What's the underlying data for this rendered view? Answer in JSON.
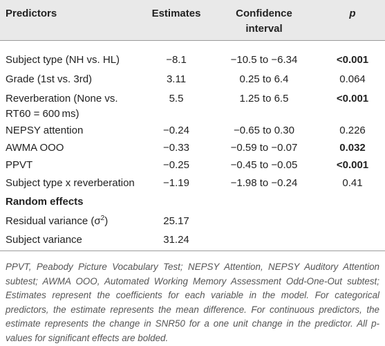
{
  "table": {
    "header": [
      "Predictors",
      "Estimates",
      [
        "Confidence",
        "interval"
      ],
      "p"
    ],
    "rows": [
      {
        "cells": [
          "Subject type (NH vs. HL)",
          "−8.1",
          "−10.5 to −6.34",
          "<0.001"
        ],
        "significant": true
      },
      {
        "cells": [
          "Grade (1st vs. 3rd)",
          "3.11",
          "0.25 to 6.4",
          "0.064"
        ],
        "significant": false
      },
      {
        "cells": [
          [
            "Reverberation (None vs.",
            "RT60 = 600 ms)"
          ],
          "5.5",
          "1.25 to 6.5",
          "<0.001"
        ],
        "significant": true
      },
      {
        "cells": [
          "NEPSY attention",
          "−0.24",
          "−0.65 to 0.30",
          "0.226"
        ],
        "significant": false
      },
      {
        "cells": [
          "AWMA OOO",
          "−0.33",
          "−0.59 to −0.07",
          "0.032"
        ],
        "significant": true
      },
      {
        "cells": [
          "PPVT",
          "−0.25",
          "−0.45 to −0.05",
          "<0.001"
        ],
        "significant": true
      },
      {
        "cells": [
          "Subject type x reverberation",
          "−1.19",
          "−1.98 to −0.24",
          "0.41"
        ],
        "significant": false
      }
    ],
    "random_effects": {
      "title": "Random effects",
      "rows": [
        {
          "label": {
            "text": "Residual variance (σ",
            "sup": "2",
            "tail": ")"
          },
          "estimate": "25.17"
        },
        {
          "label": {
            "text": "Subject variance"
          },
          "estimate": "31.24"
        }
      ]
    },
    "footnote": "PPVT, Peabody Picture Vocabulary Test; NEPSY Attention, NEPSY Auditory Attention subtest; AWMA OOO, Automated Working Memory Assessment Odd-One-Out subtest; Estimates represent the coefficients for each variable in the model. For categorical predictors, the estimate represents the mean difference. For continuous predictors, the estimate represents the change in SNR50 for a one unit change in the predictor. All p-values for significant effects are bolded."
  }
}
